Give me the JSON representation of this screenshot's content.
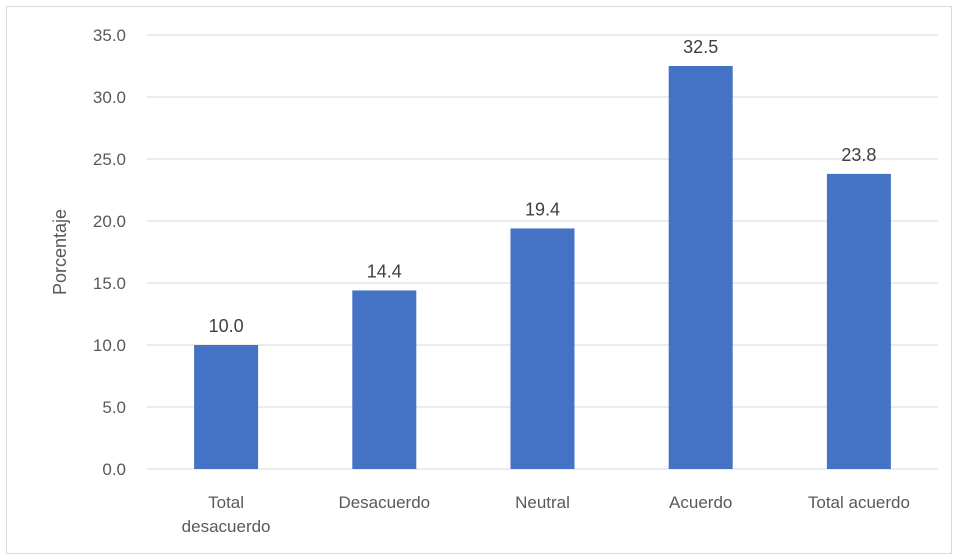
{
  "chart_data": {
    "type": "bar",
    "categories": [
      "Total desacuerdo",
      "Desacuerdo",
      "Neutral",
      "Acuerdo",
      "Total acuerdo"
    ],
    "category_lines": [
      [
        "Total",
        "desacuerdo"
      ],
      [
        "Desacuerdo"
      ],
      [
        "Neutral"
      ],
      [
        "Acuerdo"
      ],
      [
        "Total acuerdo"
      ]
    ],
    "values": [
      10.0,
      14.4,
      19.4,
      32.5,
      23.8
    ],
    "data_labels": [
      "10.0",
      "14.4",
      "19.4",
      "32.5",
      "23.8"
    ],
    "title": "",
    "xlabel": "",
    "ylabel": "Porcentaje",
    "ylim": [
      0,
      35
    ],
    "yticks": [
      "0.0",
      "5.0",
      "10.0",
      "15.0",
      "20.0",
      "25.0",
      "30.0",
      "35.0"
    ],
    "grid": true,
    "legend": "none",
    "bar_color": "#4472c4",
    "grid_color": "#d9d9d9"
  }
}
